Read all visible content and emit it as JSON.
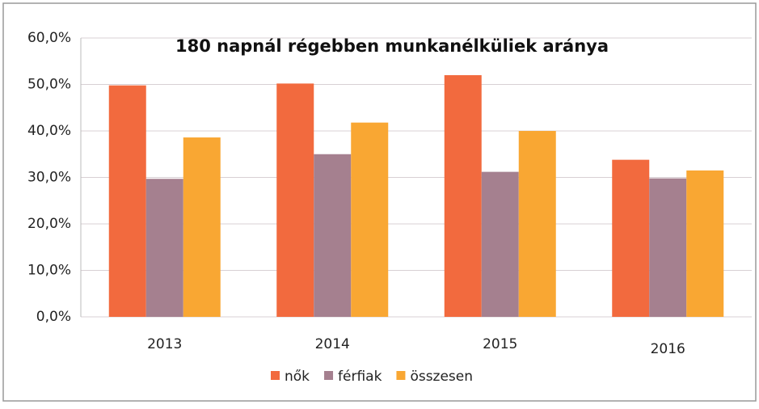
{
  "chart_data": {
    "type": "bar",
    "title": "180 napnál régebben munkanélküliek aránya",
    "categories": [
      "2013",
      "2014",
      "2015",
      "2016"
    ],
    "series": [
      {
        "name": "nők",
        "color": "#f26a3e",
        "values": [
          49.8,
          50.2,
          52.0,
          33.8
        ]
      },
      {
        "name": "férfiak",
        "color": "#a5808f",
        "values": [
          29.7,
          35.0,
          31.2,
          29.8
        ]
      },
      {
        "name": "összesen",
        "color": "#f9a733",
        "values": [
          38.6,
          41.8,
          40.0,
          31.5
        ]
      }
    ],
    "ylim": [
      0,
      60
    ],
    "yticks": [
      {
        "value": 0,
        "label": "0,0%"
      },
      {
        "value": 10,
        "label": "10,0%"
      },
      {
        "value": 20,
        "label": "20,0%"
      },
      {
        "value": 30,
        "label": "30,0%"
      },
      {
        "value": 40,
        "label": "40,0%"
      },
      {
        "value": 50,
        "label": "50,0%"
      },
      {
        "value": 60,
        "label": "60,0%"
      }
    ],
    "grid": true,
    "legend": "bottom"
  }
}
